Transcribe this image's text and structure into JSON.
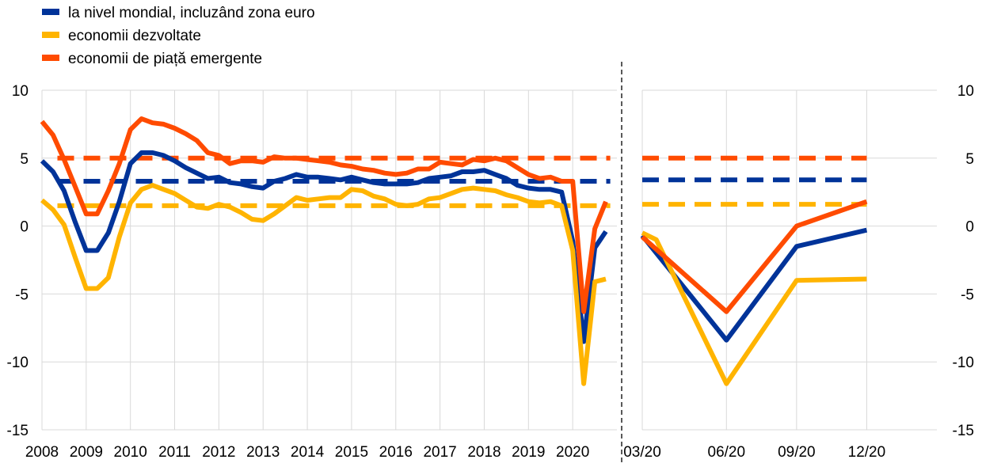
{
  "colors": {
    "world": "#003399",
    "advanced": "#FFB400",
    "emerging": "#FF4B00",
    "grid": "#D9D9D9",
    "divider": "#595959"
  },
  "legend": [
    {
      "key": "world",
      "label": "la nivel mondial, incluzând zona euro"
    },
    {
      "key": "advanced",
      "label": "economii dezvoltate"
    },
    {
      "key": "emerging",
      "label": "economii de piață emergente"
    }
  ],
  "chart_data": [
    {
      "type": "line",
      "panel": "left",
      "ylim": [
        -15,
        10
      ],
      "yticks": [
        10,
        5,
        0,
        -5,
        -10,
        -15
      ],
      "ytick_labels": [
        "10",
        "5",
        "0",
        "-5",
        "-10",
        "-15"
      ],
      "xlim": [
        2008,
        2021
      ],
      "xticks": [
        2008,
        2009,
        2010,
        2011,
        2012,
        2013,
        2014,
        2015,
        2016,
        2017,
        2018,
        2019,
        2020
      ],
      "xtick_labels": [
        "2008",
        "2009",
        "2010",
        "2011",
        "2012",
        "2013",
        "2014",
        "2015",
        "2016",
        "2017",
        "2018",
        "2019",
        "2020"
      ],
      "grid": true,
      "series": [
        {
          "key": "world",
          "name": "la nivel mondial, incluzând zona euro",
          "style": "solid",
          "x": [
            2008.0,
            2008.25,
            2008.5,
            2008.75,
            2009.0,
            2009.25,
            2009.5,
            2009.75,
            2010.0,
            2010.25,
            2010.5,
            2010.75,
            2011.0,
            2011.25,
            2011.5,
            2011.75,
            2012.0,
            2012.25,
            2012.5,
            2012.75,
            2013.0,
            2013.25,
            2013.5,
            2013.75,
            2014.0,
            2014.25,
            2014.5,
            2014.75,
            2015.0,
            2015.25,
            2015.5,
            2015.75,
            2016.0,
            2016.25,
            2016.5,
            2016.75,
            2017.0,
            2017.25,
            2017.5,
            2017.75,
            2018.0,
            2018.25,
            2018.5,
            2018.75,
            2019.0,
            2019.25,
            2019.5,
            2019.75,
            2020.0,
            2020.25,
            2020.5,
            2020.75
          ],
          "y": [
            4.8,
            4.0,
            2.6,
            0.3,
            -1.8,
            -1.8,
            -0.5,
            1.8,
            4.6,
            5.4,
            5.4,
            5.2,
            4.8,
            4.3,
            3.9,
            3.5,
            3.6,
            3.2,
            3.1,
            2.9,
            2.8,
            3.3,
            3.5,
            3.8,
            3.6,
            3.6,
            3.5,
            3.4,
            3.6,
            3.4,
            3.2,
            3.1,
            3.1,
            3.1,
            3.2,
            3.5,
            3.6,
            3.7,
            4.0,
            4.0,
            4.1,
            3.8,
            3.5,
            3.0,
            2.8,
            2.7,
            2.7,
            2.5,
            -1.1,
            -8.5,
            -1.6,
            -0.4
          ]
        },
        {
          "key": "advanced",
          "name": "economii dezvoltate",
          "style": "solid",
          "x": [
            2008.0,
            2008.25,
            2008.5,
            2008.75,
            2009.0,
            2009.25,
            2009.5,
            2009.75,
            2010.0,
            2010.25,
            2010.5,
            2010.75,
            2011.0,
            2011.25,
            2011.5,
            2011.75,
            2012.0,
            2012.25,
            2012.5,
            2012.75,
            2013.0,
            2013.25,
            2013.5,
            2013.75,
            2014.0,
            2014.25,
            2014.5,
            2014.75,
            2015.0,
            2015.25,
            2015.5,
            2015.75,
            2016.0,
            2016.25,
            2016.5,
            2016.75,
            2017.0,
            2017.25,
            2017.5,
            2017.75,
            2018.0,
            2018.25,
            2018.5,
            2018.75,
            2019.0,
            2019.25,
            2019.5,
            2019.75,
            2020.0,
            2020.25,
            2020.5,
            2020.75
          ],
          "y": [
            1.9,
            1.2,
            0.1,
            -2.3,
            -4.6,
            -4.6,
            -3.8,
            -0.8,
            1.7,
            2.7,
            3.0,
            2.7,
            2.4,
            1.9,
            1.4,
            1.3,
            1.6,
            1.4,
            1.0,
            0.5,
            0.4,
            0.9,
            1.5,
            2.1,
            1.9,
            2.0,
            2.1,
            2.1,
            2.7,
            2.6,
            2.2,
            2.0,
            1.6,
            1.5,
            1.6,
            2.0,
            2.1,
            2.4,
            2.7,
            2.8,
            2.7,
            2.6,
            2.3,
            2.1,
            1.8,
            1.7,
            1.8,
            1.5,
            -1.8,
            -11.6,
            -4.1,
            -3.9
          ]
        },
        {
          "key": "emerging",
          "name": "economii de piață emergente",
          "style": "solid",
          "x": [
            2008.0,
            2008.25,
            2008.5,
            2008.75,
            2009.0,
            2009.25,
            2009.5,
            2009.75,
            2010.0,
            2010.25,
            2010.5,
            2010.75,
            2011.0,
            2011.25,
            2011.5,
            2011.75,
            2012.0,
            2012.25,
            2012.5,
            2012.75,
            2013.0,
            2013.25,
            2013.5,
            2013.75,
            2014.0,
            2014.25,
            2014.5,
            2014.75,
            2015.0,
            2015.25,
            2015.5,
            2015.75,
            2016.0,
            2016.25,
            2016.5,
            2016.75,
            2017.0,
            2017.25,
            2017.5,
            2017.75,
            2018.0,
            2018.25,
            2018.5,
            2018.75,
            2019.0,
            2019.25,
            2019.5,
            2019.75,
            2020.0,
            2020.25,
            2020.5,
            2020.75
          ],
          "y": [
            7.7,
            6.7,
            4.9,
            2.9,
            0.9,
            0.9,
            2.6,
            4.6,
            7.1,
            7.9,
            7.6,
            7.5,
            7.2,
            6.8,
            6.3,
            5.4,
            5.2,
            4.6,
            4.8,
            4.8,
            4.7,
            5.1,
            5.0,
            5.0,
            4.9,
            4.8,
            4.7,
            4.5,
            4.4,
            4.2,
            4.1,
            3.9,
            3.8,
            3.9,
            4.2,
            4.2,
            4.7,
            4.6,
            4.5,
            4.9,
            4.8,
            5.0,
            4.8,
            4.3,
            3.8,
            3.5,
            3.6,
            3.3,
            3.3,
            -6.3,
            -0.2,
            1.8
          ]
        },
        {
          "key": "emerging",
          "name": "",
          "style": "dashed",
          "x": [
            2008.35,
            2020.85
          ],
          "y": [
            5.0,
            5.0
          ]
        },
        {
          "key": "world",
          "name": "",
          "style": "dashed",
          "x": [
            2008.35,
            2020.85
          ],
          "y": [
            3.3,
            3.3
          ]
        },
        {
          "key": "advanced",
          "name": "",
          "style": "dashed",
          "x": [
            2008.35,
            2020.85
          ],
          "y": [
            1.5,
            1.5
          ]
        }
      ]
    },
    {
      "type": "line",
      "panel": "right",
      "ylim": [
        -15,
        10
      ],
      "yticks": [
        10,
        5,
        0,
        -5,
        -10,
        -15
      ],
      "ytick_labels": [
        "10",
        "5",
        "0",
        "-5",
        "-10",
        "-15"
      ],
      "xlim": [
        0,
        4.2
      ],
      "xticks": [
        0,
        1.2,
        2.2,
        3.2
      ],
      "xtick_labels": [
        "03/20",
        "06/20",
        "09/20",
        "12/20"
      ],
      "grid": true,
      "series": [
        {
          "key": "world",
          "name": "la nivel mondial, incluzând zona euro",
          "style": "solid",
          "x": [
            0,
            1.2,
            2.2,
            3.2
          ],
          "y": [
            -0.7,
            -8.4,
            -1.5,
            -0.3
          ]
        },
        {
          "key": "advanced",
          "name": "economii dezvoltate",
          "style": "solid",
          "x": [
            0,
            0.2,
            1.2,
            2.2,
            3.2
          ],
          "y": [
            -0.5,
            -1.0,
            -11.6,
            -4.0,
            -3.9
          ]
        },
        {
          "key": "emerging",
          "name": "economii de piață emergente",
          "style": "solid",
          "x": [
            0,
            1.2,
            2.2,
            3.2
          ],
          "y": [
            -0.8,
            -6.3,
            0.0,
            1.8
          ]
        },
        {
          "key": "emerging",
          "name": "",
          "style": "dashed",
          "x": [
            0,
            3.2
          ],
          "y": [
            5.0,
            5.0
          ]
        },
        {
          "key": "world",
          "name": "",
          "style": "dashed",
          "x": [
            0,
            3.2
          ],
          "y": [
            3.4,
            3.4
          ]
        },
        {
          "key": "advanced",
          "name": "",
          "style": "dashed",
          "x": [
            0,
            3.2
          ],
          "y": [
            1.6,
            1.6
          ]
        }
      ]
    }
  ]
}
